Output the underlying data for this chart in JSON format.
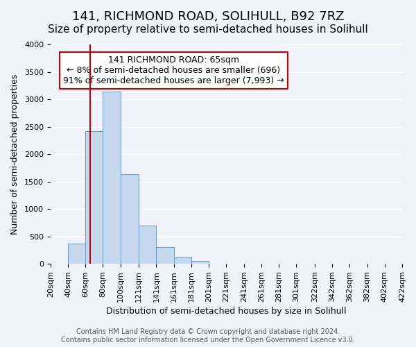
{
  "title": "141, RICHMOND ROAD, SOLIHULL, B92 7RZ",
  "subtitle": "Size of property relative to semi-detached houses in Solihull",
  "xlabel": "Distribution of semi-detached houses by size in Solihull",
  "ylabel": "Number of semi-detached properties",
  "footer_line1": "Contains HM Land Registry data © Crown copyright and database right 2024.",
  "footer_line2": "Contains public sector information licensed under the Open Government Licence v3.0.",
  "annotation_line1": "141 RICHMOND ROAD: 65sqm",
  "annotation_line2": "← 8% of semi-detached houses are smaller (696)",
  "annotation_line3": "91% of semi-detached houses are larger (7,993) →",
  "bar_color": "#c5d8f0",
  "bar_edge_color": "#5b9bd5",
  "property_line_x": 65,
  "property_line_color": "#cc0000",
  "bin_edges": [
    20,
    40,
    60,
    80,
    100,
    121,
    141,
    161,
    181,
    201,
    221,
    241,
    261,
    281,
    301,
    322,
    342,
    362,
    382,
    402,
    422
  ],
  "bin_heights": [
    0,
    375,
    2420,
    3140,
    1640,
    700,
    300,
    135,
    55,
    0,
    0,
    0,
    0,
    0,
    0,
    0,
    0,
    0,
    0,
    0
  ],
  "ylim": [
    0,
    4000
  ],
  "xlim": [
    20,
    422
  ],
  "yticks": [
    0,
    500,
    1000,
    1500,
    2000,
    2500,
    3000,
    3500,
    4000
  ],
  "background_color": "#f0f4fa",
  "grid_color": "#ffffff",
  "annotation_box_color": "#ffffff",
  "annotation_box_edge_color": "#cc0000",
  "title_fontsize": 13,
  "subtitle_fontsize": 11,
  "axis_label_fontsize": 9,
  "tick_fontsize": 8,
  "annotation_fontsize": 9,
  "footer_fontsize": 7
}
